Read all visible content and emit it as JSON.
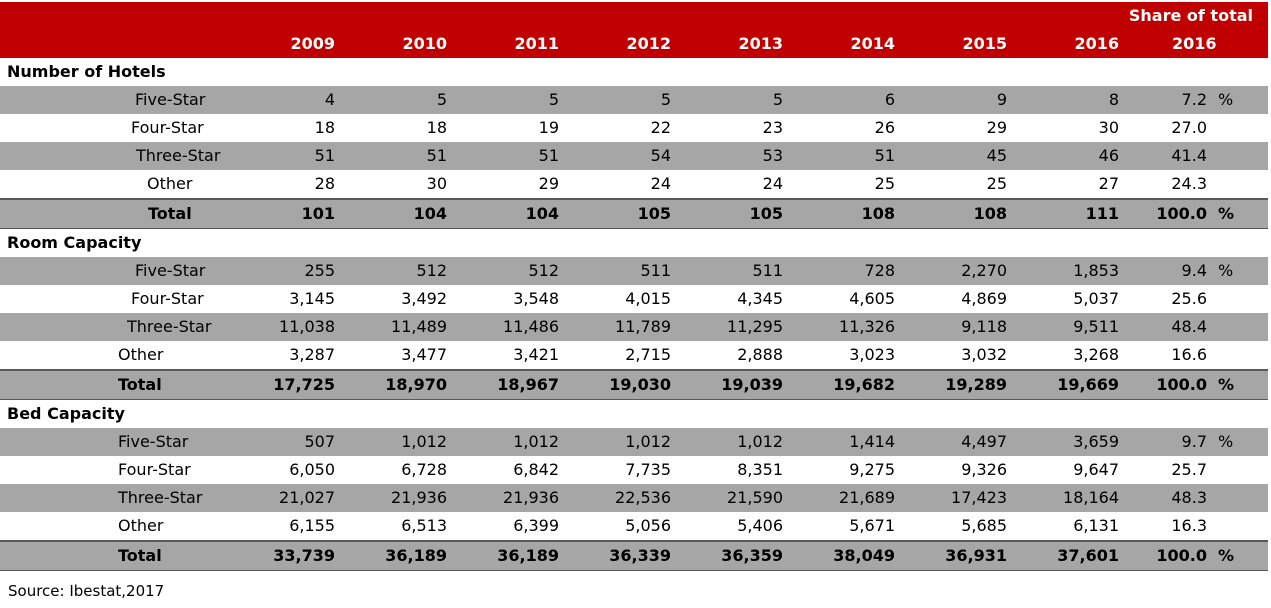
{
  "header": {
    "share_title": "Share of total",
    "years": [
      "2009",
      "2010",
      "2011",
      "2012",
      "2013",
      "2014",
      "2015",
      "2016",
      "2016"
    ]
  },
  "sections": [
    {
      "title": "Number of Hotels",
      "rows": [
        {
          "label": "Five-Star",
          "values": [
            "4",
            "5",
            "5",
            "5",
            "5",
            "6",
            "9",
            "8"
          ],
          "share": "7.2",
          "pct": "%",
          "band": true,
          "indent": 135
        },
        {
          "label": "Four-Star",
          "values": [
            "18",
            "18",
            "19",
            "22",
            "23",
            "26",
            "29",
            "30"
          ],
          "share": "27.0",
          "pct": "",
          "band": false,
          "indent": 131
        },
        {
          "label": "Three-Star",
          "values": [
            "51",
            "51",
            "51",
            "54",
            "53",
            "51",
            "45",
            "46"
          ],
          "share": "41.4",
          "pct": "",
          "band": true,
          "indent": 136
        },
        {
          "label": "Other",
          "values": [
            "28",
            "30",
            "29",
            "24",
            "24",
            "25",
            "25",
            "27"
          ],
          "share": "24.3",
          "pct": "",
          "band": false,
          "indent": 147
        },
        {
          "label": "Total",
          "values": [
            "101",
            "104",
            "104",
            "105",
            "105",
            "108",
            "108",
            "111"
          ],
          "share": "100.0",
          "pct": "%",
          "total": true,
          "indent": 148
        }
      ]
    },
    {
      "title": "Room Capacity",
      "rows": [
        {
          "label": "Five-Star",
          "values": [
            "255",
            "512",
            "512",
            "511",
            "511",
            "728",
            "2,270",
            "1,853"
          ],
          "share": "9.4",
          "pct": "%",
          "band": true,
          "indent": 135
        },
        {
          "label": "Four-Star",
          "values": [
            "3,145",
            "3,492",
            "3,548",
            "4,015",
            "4,345",
            "4,605",
            "4,869",
            "5,037"
          ],
          "share": "25.6",
          "pct": "",
          "band": false,
          "indent": 131
        },
        {
          "label": "Three-Star",
          "values": [
            "11,038",
            "11,489",
            "11,486",
            "11,789",
            "11,295",
            "11,326",
            "9,118",
            "9,511"
          ],
          "share": "48.4",
          "pct": "",
          "band": true,
          "indent": 127
        },
        {
          "label": "Other",
          "values": [
            "3,287",
            "3,477",
            "3,421",
            "2,715",
            "2,888",
            "3,023",
            "3,032",
            "3,268"
          ],
          "share": "16.6",
          "pct": "",
          "band": false,
          "indent": 118
        },
        {
          "label": "Total",
          "values": [
            "17,725",
            "18,970",
            "18,967",
            "19,030",
            "19,039",
            "19,682",
            "19,289",
            "19,669"
          ],
          "share": "100.0",
          "pct": "%",
          "total": true,
          "indent": 118
        }
      ]
    },
    {
      "title": "Bed Capacity",
      "rows": [
        {
          "label": "Five-Star",
          "values": [
            "507",
            "1,012",
            "1,012",
            "1,012",
            "1,012",
            "1,414",
            "4,497",
            "3,659"
          ],
          "share": "9.7",
          "pct": "%",
          "band": true,
          "indent": 118
        },
        {
          "label": "Four-Star",
          "values": [
            "6,050",
            "6,728",
            "6,842",
            "7,735",
            "8,351",
            "9,275",
            "9,326",
            "9,647"
          ],
          "share": "25.7",
          "pct": "",
          "band": false,
          "indent": 118
        },
        {
          "label": "Three-Star",
          "values": [
            "21,027",
            "21,936",
            "21,936",
            "22,536",
            "21,590",
            "21,689",
            "17,423",
            "18,164"
          ],
          "share": "48.3",
          "pct": "",
          "band": true,
          "indent": 118
        },
        {
          "label": "Other",
          "values": [
            "6,155",
            "6,513",
            "6,399",
            "5,056",
            "5,406",
            "5,671",
            "5,685",
            "6,131"
          ],
          "share": "16.3",
          "pct": "",
          "band": false,
          "indent": 118
        },
        {
          "label": "Total",
          "values": [
            "33,739",
            "36,189",
            "36,189",
            "36,339",
            "36,359",
            "38,049",
            "36,931",
            "37,601"
          ],
          "share": "100.0",
          "pct": "%",
          "total": true,
          "indent": 118
        }
      ]
    }
  ],
  "source": "Source: Ibestat,2017"
}
